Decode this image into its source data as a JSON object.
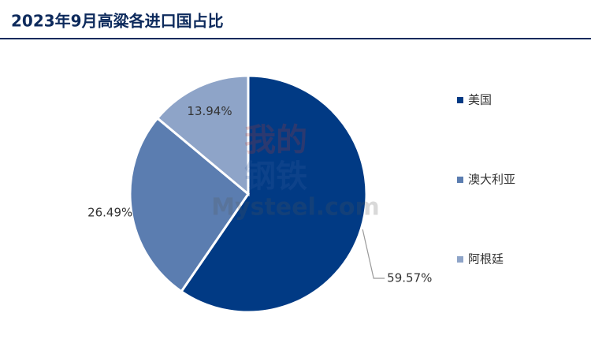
{
  "chart_data": {
    "type": "pie",
    "title": "2023年9月高粱各进口国占比",
    "categories": [
      "美国",
      "澳大利亚",
      "阿根廷"
    ],
    "values": [
      59.57,
      26.49,
      13.94
    ],
    "value_labels": [
      "59.57%",
      "26.49%",
      "13.94%"
    ],
    "colors": [
      "#013a84",
      "#5b7db0",
      "#8ea4c8"
    ],
    "legend": "right",
    "watermark": [
      "我的",
      "钢铁",
      "Mysteel.com"
    ]
  }
}
